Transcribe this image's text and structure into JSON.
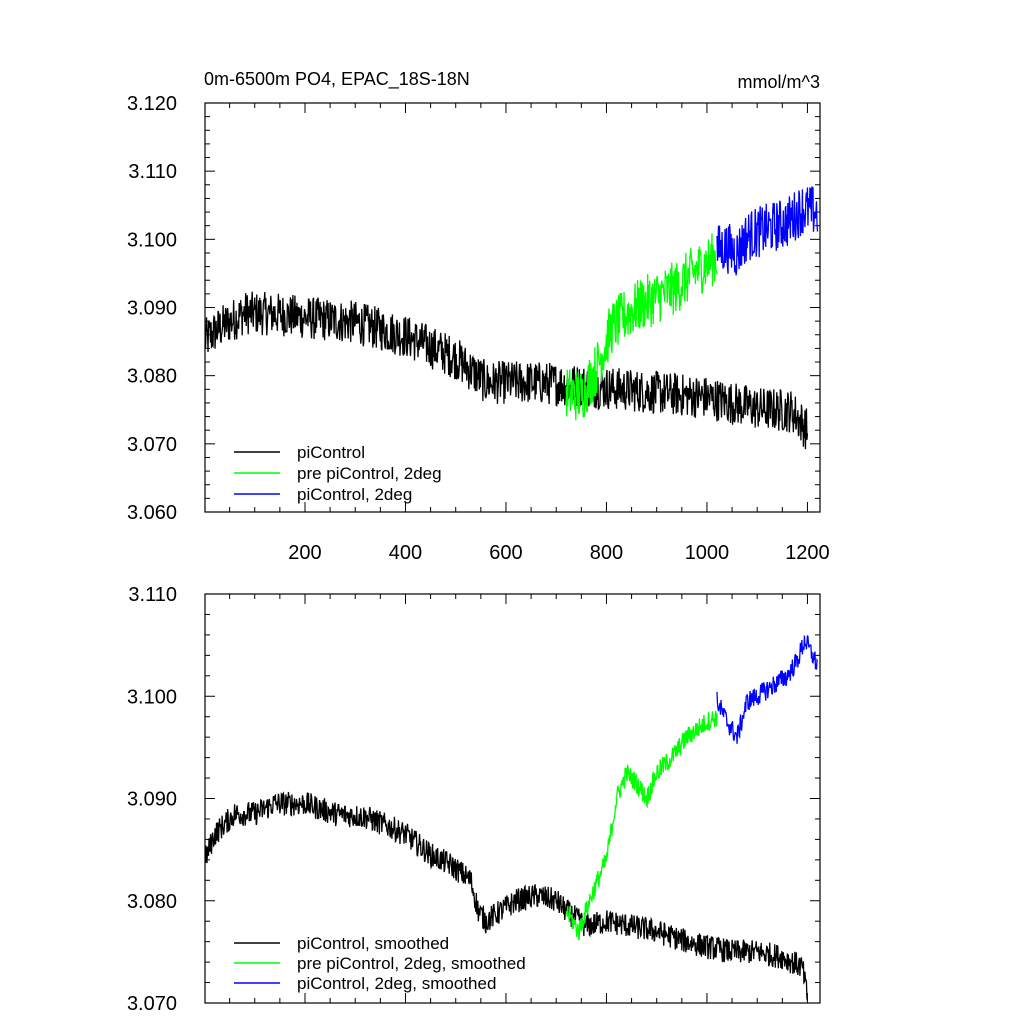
{
  "header": {
    "title": "0m-6500m PO4, EPAC_18S-18N",
    "units": "mmol/m^3"
  },
  "colors": {
    "piControl": "#000000",
    "pre_piControl_2deg": "#00ff00",
    "piControl_2deg": "#0000ff"
  },
  "chart_data": [
    {
      "type": "line",
      "title": "0m-6500m PO4, EPAC_18S-18N",
      "units": "mmol/m^3",
      "xlim": [
        1,
        1225
      ],
      "ylim": [
        3.06,
        3.12
      ],
      "x_ticks": [
        200,
        400,
        600,
        800,
        1000,
        1200
      ],
      "x_tick_labels": [
        "200",
        "400",
        "600",
        "800",
        "1000",
        "1200"
      ],
      "y_ticks": [
        3.06,
        3.07,
        3.08,
        3.09,
        3.1,
        3.11,
        3.12
      ],
      "y_tick_labels": [
        "3.060",
        "3.070",
        "3.080",
        "3.090",
        "3.100",
        "3.110",
        "3.120"
      ],
      "legend": "bottom-left",
      "series": [
        {
          "name": "piControl",
          "color": "#000000",
          "x_start": 1,
          "x_end": 1200,
          "anchors": [
            [
              1,
              3.0852
            ],
            [
              30,
              3.087
            ],
            [
              80,
              3.0892
            ],
            [
              150,
              3.089
            ],
            [
              200,
              3.0885
            ],
            [
              300,
              3.0878
            ],
            [
              400,
              3.0858
            ],
            [
              500,
              3.0826
            ],
            [
              560,
              3.079
            ],
            [
              600,
              3.079
            ],
            [
              650,
              3.079
            ],
            [
              700,
              3.0788
            ],
            [
              750,
              3.0785
            ],
            [
              800,
              3.0782
            ],
            [
              900,
              3.0775
            ],
            [
              1000,
              3.0768
            ],
            [
              1100,
              3.0752
            ],
            [
              1170,
              3.0748
            ],
            [
              1200,
              3.072
            ]
          ],
          "noise": 0.0032
        },
        {
          "name": "pre piControl, 2deg",
          "color": "#00ff00",
          "x_start": 720,
          "x_end": 1020,
          "anchors": [
            [
              720,
              3.0775
            ],
            [
              750,
              3.077
            ],
            [
              780,
              3.081
            ],
            [
              810,
              3.087
            ],
            [
              840,
              3.089
            ],
            [
              870,
              3.0905
            ],
            [
              900,
              3.0915
            ],
            [
              940,
              3.093
            ],
            [
              980,
              3.0955
            ],
            [
              1020,
              3.0975
            ]
          ],
          "noise": 0.004
        },
        {
          "name": "piControl, 2deg",
          "color": "#0000ff",
          "x_start": 1020,
          "x_end": 1220,
          "anchors": [
            [
              1020,
              3.0985
            ],
            [
              1040,
              3.0988
            ],
            [
              1060,
              3.098
            ],
            [
              1080,
              3.1005
            ],
            [
              1120,
              3.1015
            ],
            [
              1160,
              3.1025
            ],
            [
              1190,
              3.1045
            ],
            [
              1220,
              3.104
            ]
          ],
          "noise": 0.0038
        }
      ]
    },
    {
      "type": "line",
      "xlim": [
        1,
        1225
      ],
      "ylim": [
        3.07,
        3.11
      ],
      "x_ticks": [
        200,
        400,
        600,
        800,
        1000,
        1200
      ],
      "y_ticks": [
        3.07,
        3.08,
        3.09,
        3.1,
        3.11
      ],
      "y_tick_labels": [
        "3.070",
        "3.080",
        "3.090",
        "3.100",
        "3.110"
      ],
      "legend": "bottom-left",
      "series": [
        {
          "name": "piControl, smoothed",
          "color": "#000000",
          "x_start": 1,
          "x_end": 1200,
          "anchors": [
            [
              1,
              3.084
            ],
            [
              20,
              3.0865
            ],
            [
              60,
              3.0885
            ],
            [
              100,
              3.0885
            ],
            [
              140,
              3.0895
            ],
            [
              200,
              3.0895
            ],
            [
              260,
              3.0885
            ],
            [
              320,
              3.0882
            ],
            [
              370,
              3.0872
            ],
            [
              400,
              3.0865
            ],
            [
              450,
              3.0845
            ],
            [
              490,
              3.0835
            ],
            [
              530,
              3.082
            ],
            [
              545,
              3.079
            ],
            [
              560,
              3.078
            ],
            [
              590,
              3.079
            ],
            [
              620,
              3.08
            ],
            [
              660,
              3.0805
            ],
            [
              700,
              3.08
            ],
            [
              720,
              3.079
            ],
            [
              760,
              3.0775
            ],
            [
              800,
              3.078
            ],
            [
              850,
              3.0775
            ],
            [
              900,
              3.077
            ],
            [
              960,
              3.076
            ],
            [
              1000,
              3.0755
            ],
            [
              1050,
              3.075
            ],
            [
              1100,
              3.075
            ],
            [
              1150,
              3.0745
            ],
            [
              1190,
              3.0735
            ],
            [
              1200,
              3.0705
            ]
          ],
          "noise": 0.0012
        },
        {
          "name": "pre piControl, 2deg, smoothed",
          "color": "#00ff00",
          "x_start": 720,
          "x_end": 1020,
          "anchors": [
            [
              720,
              3.079
            ],
            [
              745,
              3.077
            ],
            [
              770,
              3.0805
            ],
            [
              800,
              3.084
            ],
            [
              820,
              3.09
            ],
            [
              840,
              3.0925
            ],
            [
              860,
              3.0915
            ],
            [
              880,
              3.09
            ],
            [
              900,
              3.0925
            ],
            [
              930,
              3.094
            ],
            [
              960,
              3.096
            ],
            [
              1000,
              3.0975
            ],
            [
              1020,
              3.098
            ]
          ],
          "noise": 0.001
        },
        {
          "name": "piControl, 2deg, smoothed",
          "color": "#0000ff",
          "x_start": 1020,
          "x_end": 1220,
          "anchors": [
            [
              1020,
              3.0995
            ],
            [
              1040,
              3.0975
            ],
            [
              1060,
              3.096
            ],
            [
              1080,
              3.0995
            ],
            [
              1100,
              3.1
            ],
            [
              1130,
              3.101
            ],
            [
              1160,
              3.102
            ],
            [
              1180,
              3.1035
            ],
            [
              1195,
              3.1055
            ],
            [
              1210,
              3.104
            ],
            [
              1220,
              3.103
            ]
          ],
          "noise": 0.001
        }
      ]
    }
  ]
}
